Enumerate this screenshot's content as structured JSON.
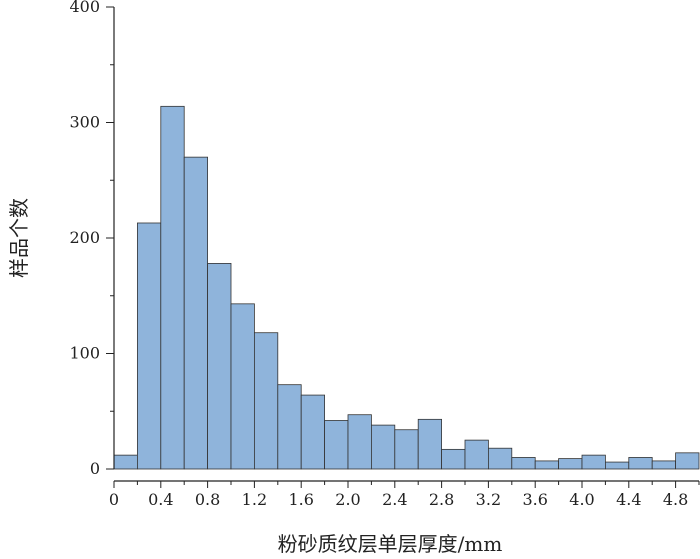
{
  "chart_data": {
    "type": "bar",
    "title": "",
    "xlabel": "粉砂质纹层单层厚度/mm",
    "ylabel": "样品个数",
    "bar_color": "#8fb4db",
    "bar_edge_color": "#333333",
    "grid": false,
    "legend": "none",
    "xlim": [
      0,
      5.0
    ],
    "ylim": [
      0,
      400
    ],
    "x_ticks": [
      0,
      0.4,
      0.8,
      1.2,
      1.6,
      2.0,
      2.4,
      2.8,
      3.2,
      3.6,
      4.0,
      4.4,
      4.8
    ],
    "x_tick_labels": [
      "0",
      "0.4",
      "0.8",
      "1.2",
      "1.6",
      "2.0",
      "2.4",
      "2.8",
      "3.2",
      "3.6",
      "4.0",
      "4.4",
      "4.8"
    ],
    "y_ticks": [
      0,
      100,
      200,
      300,
      400
    ],
    "y_tick_labels": [
      "0",
      "100",
      "200",
      "300",
      "400"
    ],
    "bin_width": 0.2,
    "bin_starts": [
      0.0,
      0.2,
      0.4,
      0.6,
      0.8,
      1.0,
      1.2,
      1.4,
      1.6,
      1.8,
      2.0,
      2.2,
      2.4,
      2.6,
      2.8,
      3.0,
      3.2,
      3.4,
      3.6,
      3.8,
      4.0,
      4.2,
      4.4,
      4.6,
      4.8
    ],
    "values": [
      12,
      213,
      314,
      270,
      178,
      143,
      118,
      73,
      64,
      42,
      47,
      38,
      34,
      43,
      17,
      25,
      18,
      10,
      7,
      9,
      12,
      6,
      10,
      7,
      14
    ]
  }
}
